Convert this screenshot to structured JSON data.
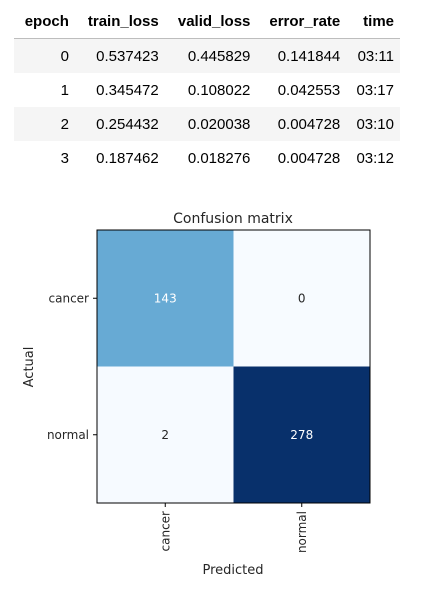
{
  "metrics_table": {
    "columns": [
      "epoch",
      "train_loss",
      "valid_loss",
      "error_rate",
      "time"
    ],
    "rows": [
      [
        "0",
        "0.537423",
        "0.445829",
        "0.141844",
        "03:11"
      ],
      [
        "1",
        "0.345472",
        "0.108022",
        "0.042553",
        "03:17"
      ],
      [
        "2",
        "0.254432",
        "0.020038",
        "0.004728",
        "03:10"
      ],
      [
        "3",
        "0.187462",
        "0.018276",
        "0.004728",
        "03:12"
      ]
    ]
  },
  "chart_data": {
    "type": "heatmap",
    "title": "Confusion matrix",
    "xlabel": "Predicted",
    "ylabel": "Actual",
    "x_categories": [
      "cancer",
      "normal"
    ],
    "y_categories": [
      "cancer",
      "normal"
    ],
    "values": [
      [
        143,
        0
      ],
      [
        2,
        278
      ]
    ],
    "colormap": "Blues",
    "colors": {
      "low": "#f7fbff",
      "mid": "#6baed6",
      "high": "#08306b",
      "text_on_dark": "#ffffff",
      "text_on_light": "#262626"
    }
  }
}
